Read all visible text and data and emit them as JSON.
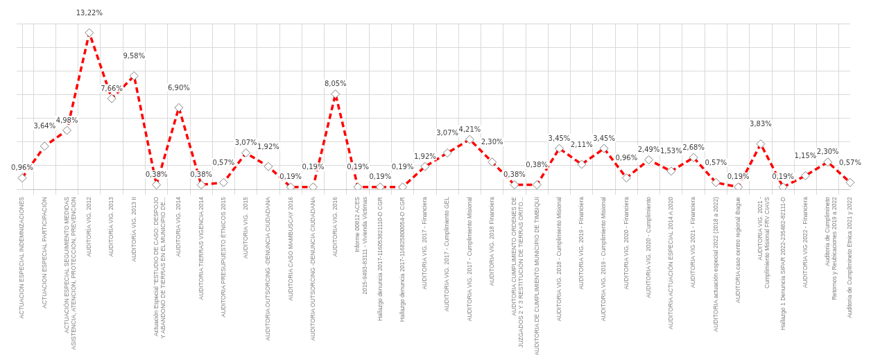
{
  "chart_data": {
    "type": "line",
    "categories": [
      "ACTUACION ESPECIAL INDEMNIZACIONES",
      "ACTUACION ESPECIAL PARTICIPACIÓN",
      "ACTUACIÓN ESPECIAL SEGUIMIENTO MEDIDAS ASISTENCIA, ATENCION, PROTECCION, PREVENCION",
      "AUDITORÍA VIG. 2012",
      "AUDITORÍA VIG. 2013",
      "AUDITORÍA VIG. 2013 II",
      "Actuación Especial \"ESTUDIO DE CASO: DESPOJO Y ABANDONO DE TIERRAS EN EL MUNICIPIO DE...",
      "AUDITORIA VIG. 2014",
      "AUDITORIA TIERRAS VIGENCIA 2014",
      "AUDITORIA PRESUPUESTO ÉTNICOS 2015",
      "AUDITORIA VIG.  2015",
      "AUDITORIA OUTSORCING -DENUNCIA CIUDADANA",
      "AUDITORIA CASO MAMBUSCAY 2016",
      "AUDITORIA OUTSORCING -DENUNCIA CIUDADANA",
      "AUDITORIA VIG. 2016",
      "Informe 00812 ACES 2015-9493-83111 - Vivienda Víctimas",
      "Hallazgo denuncia 2017-116053821110-D CGR",
      "Hallazgo denuncia 2017-116825800054-D CGR",
      "AUDITORIA VIG. 2017 - Financiera",
      "AUDITORIA VIG. 2017 - Cumplimiento GEL",
      "AUDITORIA VIG. 2017 - Cumplimiento Misional",
      "AUDITORIA VIG. 2018 Financiera",
      "AUDITORIA CUMPLIMIENTO ORDENES DE JUZGADOS 2 Y 3 RESTITUCIÓN DE TIERRAS ORITO...",
      "AUDITORIA DE CUMPLIMIENTO MUNICIPIO DE TIMBIQUI",
      "AUDITORIA VIG. 2018 - Cumplimiento Misional",
      "AUDITORIA VIG. 2019 - Financiera",
      "AUDITORIA VIG. 2019 - Cumplimiento Misional",
      "AUDITORIA VIG. 2020 - Financiera",
      "AUDITORIA VIG. 2020 - Cumplimiento",
      "AUDITORIA ACTUACIÓN ESPECIAL 2014 A 2020",
      "AUDITORIA VIG 2021 - Financiera",
      "AUDITORIA actuación especial 2022 (2018 a 2022)",
      "AUDITORIA caso centro regional Ibague",
      "AUDITORIA VIG. 2021 - Cumplimiento Misional FRV CIAVS",
      "Hallazgo 1 Denuncia SIPAR 2022-235482-82111-D",
      "AUDITORIA VIG 2022 - Financiera",
      "Auditoria de Cumplimineto Retornos y Reubicaciones 2019 a 2022",
      "Auditoria de Cumplimineto Etnica 2021 y 2022"
    ],
    "series": [
      {
        "color": "#ff0000",
        "values": [
          0.96,
          3.64,
          4.98,
          13.22,
          7.66,
          9.58,
          0.38,
          6.9,
          0.38,
          0.57,
          3.07,
          1.92,
          0.19,
          0.19,
          8.05,
          0.19,
          0.19,
          0.19,
          1.92,
          3.07,
          4.21,
          2.3,
          0.38,
          0.38,
          3.45,
          2.11,
          3.45,
          0.96,
          2.49,
          1.53,
          2.68,
          0.57,
          0.19,
          3.83,
          0.19,
          1.15,
          2.3,
          0.57
        ],
        "value_labels": [
          "0,96%",
          "3,64%",
          "4,98%",
          "13,22%",
          "7,66%",
          "9,58%",
          "0,38%",
          "6,90%",
          "0,38%",
          "0,57%",
          "3,07%",
          "1,92%",
          "0,19%",
          "0,19%",
          "8,05%",
          "0,19%",
          "0,19%",
          "0,19%",
          "1,92%",
          "3,07%",
          "4,21%",
          "2,30%",
          "0,38%",
          "0,38%",
          "3,45%",
          "2,11%",
          "3,45%",
          "0,96%",
          "2,49%",
          "1,53%",
          "2,68%",
          "0,57%",
          "0,19%",
          "3,83%",
          "0,19%",
          "1,15%",
          "2,30%",
          "0,57%"
        ]
      }
    ],
    "ylim": [
      0,
      14
    ],
    "yticks": [
      {
        "value": 0,
        "label": null
      },
      {
        "value": 2,
        "label": null
      },
      {
        "value": 4,
        "label": null
      },
      {
        "value": 6,
        "label": null
      },
      {
        "value": 8,
        "label": null
      },
      {
        "value": 10,
        "label": null
      },
      {
        "value": 12,
        "label": null
      },
      {
        "value": 14,
        "label": null
      }
    ],
    "tick_labels": "x",
    "grid": true,
    "legend": false,
    "marker": "diamond",
    "line_style": "dashed"
  }
}
